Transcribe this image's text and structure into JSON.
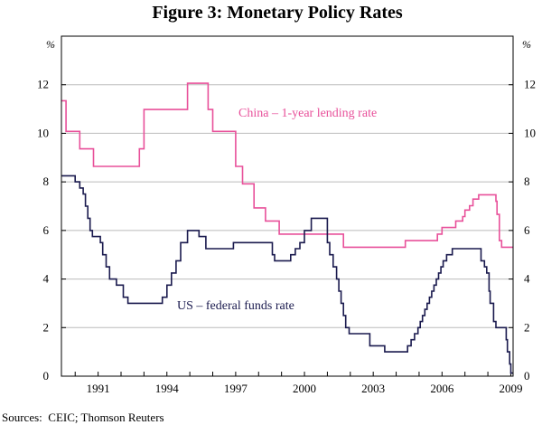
{
  "chart_data": {
    "type": "line",
    "title": "Figure 3: Monetary Policy Rates",
    "unit_left": "%",
    "unit_right": "%",
    "x_range": [
      1989.4,
      2009.1
    ],
    "ylim": [
      0,
      14
    ],
    "y_ticks": [
      0,
      2,
      4,
      6,
      8,
      10,
      12
    ],
    "x_ticks": [
      1991,
      1994,
      1997,
      2000,
      2003,
      2006,
      2009
    ],
    "x_tick_labels": [
      "1991",
      "1994",
      "1997",
      "2000",
      "2003",
      "2006",
      "2009"
    ],
    "source": "Sources:  CEIC; Thomson Reuters",
    "series": [
      {
        "name": "China – 1-year lending rate",
        "color": "#e8509a",
        "step": true,
        "points": [
          [
            1989.4,
            11.34
          ],
          [
            1989.6,
            10.08
          ],
          [
            1990.2,
            9.36
          ],
          [
            1990.8,
            8.64
          ],
          [
            1992.8,
            9.36
          ],
          [
            1993.0,
            10.98
          ],
          [
            1994.9,
            12.06
          ],
          [
            1995.8,
            10.98
          ],
          [
            1996.0,
            10.08
          ],
          [
            1996.6,
            10.08
          ],
          [
            1997.0,
            8.64
          ],
          [
            1997.3,
            7.92
          ],
          [
            1997.8,
            6.93
          ],
          [
            1998.3,
            6.39
          ],
          [
            1998.9,
            5.85
          ],
          [
            2001.7,
            5.31
          ],
          [
            2004.4,
            5.58
          ],
          [
            2005.8,
            5.85
          ],
          [
            2006.0,
            6.12
          ],
          [
            2006.6,
            6.39
          ],
          [
            2006.9,
            6.57
          ],
          [
            2007.0,
            6.84
          ],
          [
            2007.2,
            7.02
          ],
          [
            2007.35,
            7.29
          ],
          [
            2007.6,
            7.47
          ],
          [
            2008.35,
            7.2
          ],
          [
            2008.4,
            6.66
          ],
          [
            2008.5,
            5.58
          ],
          [
            2008.6,
            5.31
          ],
          [
            2009.1,
            5.31
          ]
        ]
      },
      {
        "name": "US – federal funds rate",
        "color": "#1a1a4e",
        "step": true,
        "points": [
          [
            1989.4,
            8.25
          ],
          [
            1989.9,
            8.25
          ],
          [
            1990.0,
            8.0
          ],
          [
            1990.2,
            7.75
          ],
          [
            1990.35,
            7.5
          ],
          [
            1990.45,
            7.0
          ],
          [
            1990.55,
            6.5
          ],
          [
            1990.65,
            6.0
          ],
          [
            1990.75,
            5.75
          ],
          [
            1991.1,
            5.5
          ],
          [
            1991.2,
            5.0
          ],
          [
            1991.35,
            4.5
          ],
          [
            1991.5,
            4.0
          ],
          [
            1991.8,
            3.75
          ],
          [
            1992.1,
            3.25
          ],
          [
            1992.3,
            3.0
          ],
          [
            1993.8,
            3.25
          ],
          [
            1994.0,
            3.75
          ],
          [
            1994.2,
            4.25
          ],
          [
            1994.4,
            4.75
          ],
          [
            1994.6,
            5.5
          ],
          [
            1994.9,
            6.0
          ],
          [
            1995.4,
            5.75
          ],
          [
            1995.7,
            5.25
          ],
          [
            1996.9,
            5.5
          ],
          [
            1998.6,
            5.0
          ],
          [
            1998.7,
            4.75
          ],
          [
            1999.4,
            5.0
          ],
          [
            1999.6,
            5.25
          ],
          [
            1999.8,
            5.5
          ],
          [
            2000.0,
            6.0
          ],
          [
            2000.3,
            6.5
          ],
          [
            2001.0,
            5.5
          ],
          [
            2001.1,
            5.0
          ],
          [
            2001.25,
            4.5
          ],
          [
            2001.4,
            4.0
          ],
          [
            2001.5,
            3.5
          ],
          [
            2001.6,
            3.0
          ],
          [
            2001.7,
            2.5
          ],
          [
            2001.8,
            2.0
          ],
          [
            2001.95,
            1.75
          ],
          [
            2002.85,
            1.25
          ],
          [
            2003.5,
            1.0
          ],
          [
            2004.5,
            1.25
          ],
          [
            2004.65,
            1.5
          ],
          [
            2004.8,
            1.75
          ],
          [
            2004.95,
            2.0
          ],
          [
            2005.05,
            2.25
          ],
          [
            2005.15,
            2.5
          ],
          [
            2005.25,
            2.75
          ],
          [
            2005.35,
            3.0
          ],
          [
            2005.45,
            3.25
          ],
          [
            2005.55,
            3.5
          ],
          [
            2005.65,
            3.75
          ],
          [
            2005.75,
            4.0
          ],
          [
            2005.85,
            4.25
          ],
          [
            2005.95,
            4.5
          ],
          [
            2006.05,
            4.75
          ],
          [
            2006.2,
            5.0
          ],
          [
            2006.45,
            5.25
          ],
          [
            2007.7,
            4.75
          ],
          [
            2007.85,
            4.5
          ],
          [
            2007.95,
            4.25
          ],
          [
            2008.05,
            3.5
          ],
          [
            2008.1,
            3.0
          ],
          [
            2008.25,
            2.25
          ],
          [
            2008.35,
            2.0
          ],
          [
            2008.8,
            1.5
          ],
          [
            2008.85,
            1.0
          ],
          [
            2008.95,
            0.5
          ],
          [
            2009.0,
            0.125
          ],
          [
            2009.1,
            0.125
          ]
        ]
      }
    ]
  },
  "labels": {
    "china": "China – 1-year lending rate",
    "us": "US – federal funds rate"
  }
}
